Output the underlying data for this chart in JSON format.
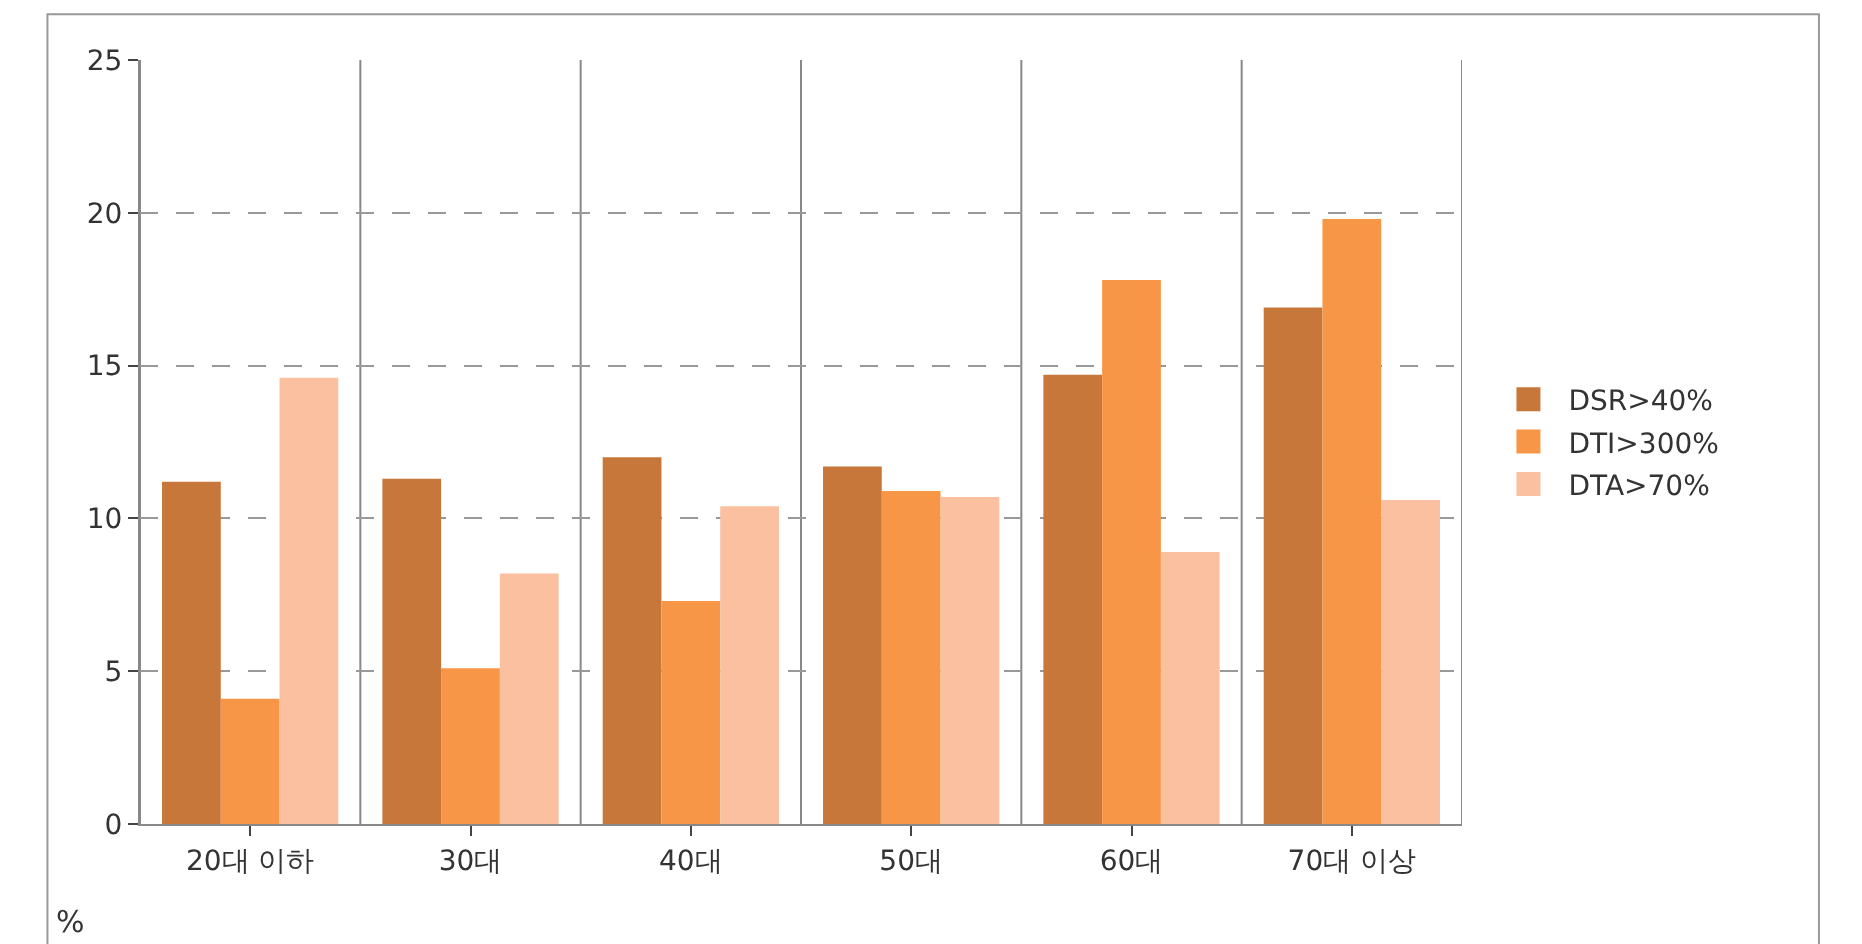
{
  "chart_data": {
    "type": "bar",
    "ylabel": "%",
    "categories": [
      "20대 이하",
      "30대",
      "40대",
      "50대",
      "60대",
      "70대 이상"
    ],
    "series": [
      {
        "name": "DSR>40%",
        "color": "#c8773a",
        "values": [
          11.2,
          11.3,
          12.0,
          11.7,
          14.7,
          16.9
        ]
      },
      {
        "name": "DTI>300%",
        "color": "#f79646",
        "values": [
          4.1,
          5.1,
          7.3,
          10.9,
          17.8,
          19.8
        ]
      },
      {
        "name": "DTA>70%",
        "color": "#fac09f",
        "values": [
          14.6,
          8.2,
          10.4,
          10.7,
          8.9,
          10.6
        ]
      }
    ],
    "ylim": [
      0,
      25
    ],
    "yticks": [
      0,
      5,
      10,
      15,
      20,
      25
    ],
    "grid": true,
    "legend": "right"
  }
}
